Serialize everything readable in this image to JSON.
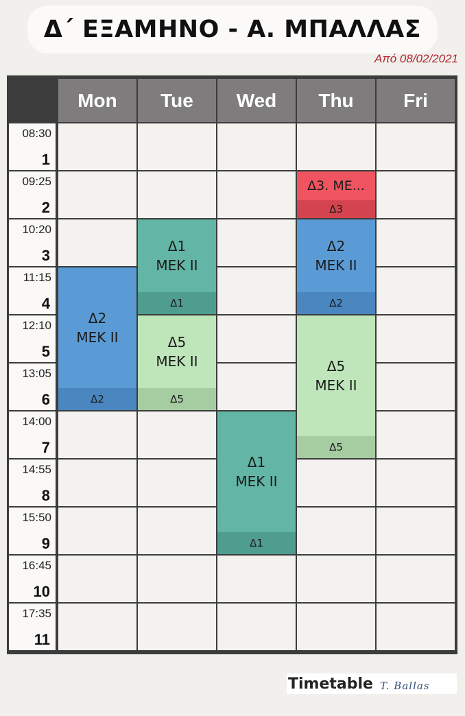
{
  "header": {
    "title": "Δ΄ ΕΞΑΜΗΝΟ - Α. ΜΠΑΛΛΑΣ",
    "subtitle": "Από 08/02/2021"
  },
  "days": [
    "Mon",
    "Tue",
    "Wed",
    "Thu",
    "Fri"
  ],
  "periods": [
    {
      "time": "08:30",
      "num": "1"
    },
    {
      "time": "09:25",
      "num": "2"
    },
    {
      "time": "10:20",
      "num": "3"
    },
    {
      "time": "11:15",
      "num": "4"
    },
    {
      "time": "12:10",
      "num": "5"
    },
    {
      "time": "13:05",
      "num": "6"
    },
    {
      "time": "14:00",
      "num": "7"
    },
    {
      "time": "14:55",
      "num": "8"
    },
    {
      "time": "15:50",
      "num": "9"
    },
    {
      "time": "16:45",
      "num": "10"
    },
    {
      "time": "17:35",
      "num": "11"
    }
  ],
  "events": [
    {
      "day": 0,
      "start": 4,
      "span": 3,
      "title": "Δ2",
      "subtitle": "ΜΕΚ ΙΙ",
      "group": "Δ2",
      "color": "#5a9bd5",
      "foot_color": "#4a86bf"
    },
    {
      "day": 1,
      "start": 3,
      "span": 2,
      "title": "Δ1",
      "subtitle": "ΜΕΚ ΙΙ",
      "group": "Δ1",
      "color": "#63b5a5",
      "foot_color": "#4f9d8e"
    },
    {
      "day": 1,
      "start": 5,
      "span": 2,
      "title": "Δ5",
      "subtitle": "ΜΕΚ ΙΙ",
      "group": "Δ5",
      "color": "#bfe6ba",
      "foot_color": "#a6cca2"
    },
    {
      "day": 2,
      "start": 7,
      "span": 3,
      "title": "Δ1",
      "subtitle": "ΜΕΚ ΙΙ",
      "group": "Δ1",
      "color": "#63b5a5",
      "foot_color": "#4f9d8e"
    },
    {
      "day": 3,
      "start": 2,
      "span": 1,
      "title": "Δ3. ΜΕ...",
      "subtitle": "",
      "group": "Δ3",
      "color": "#ef5460",
      "foot_color": "#d44450"
    },
    {
      "day": 3,
      "start": 3,
      "span": 2,
      "title": "Δ2",
      "subtitle": "ΜΕΚ ΙΙ",
      "group": "Δ2",
      "color": "#5a9bd5",
      "foot_color": "#4a86bf"
    },
    {
      "day": 3,
      "start": 5,
      "span": 3,
      "title": "Δ5",
      "subtitle": "ΜΕΚ ΙΙ",
      "group": "Δ5",
      "color": "#bfe6ba",
      "foot_color": "#a6cca2"
    }
  ],
  "footer": {
    "label": "Timetable",
    "author": "T. Ballas"
  }
}
